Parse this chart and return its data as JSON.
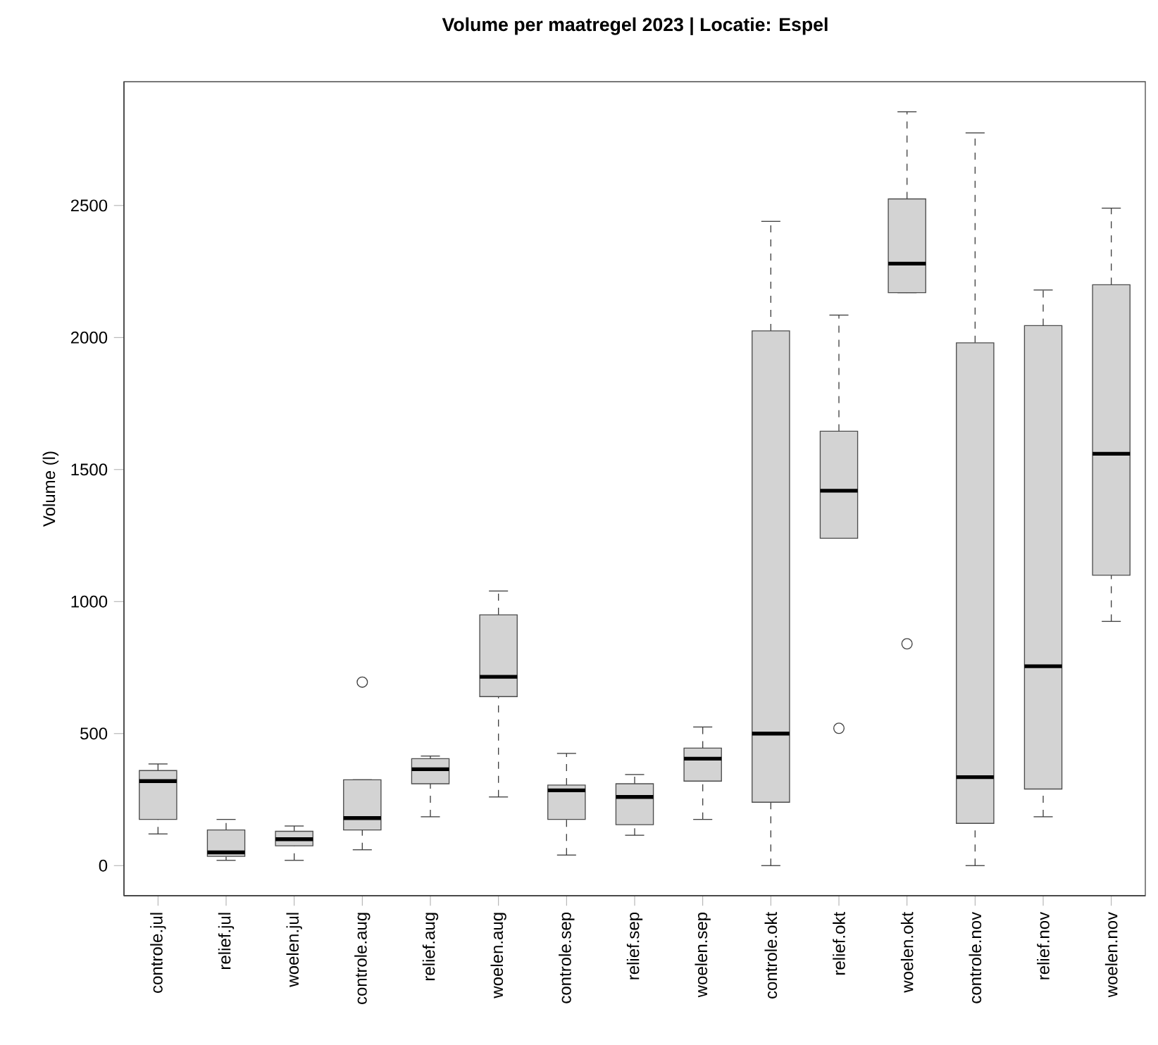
{
  "chart_data": {
    "type": "box",
    "title": "Volume per maatregel 2023 | Locatie: Espel",
    "ylabel": "Volume (l)",
    "categories": [
      "controle.jul",
      "relief.jul",
      "woelen.jul",
      "controle.aug",
      "relief.aug",
      "woelen.aug",
      "controle.sep",
      "relief.sep",
      "woelen.sep",
      "controle.okt",
      "relief.okt",
      "woelen.okt",
      "controle.nov",
      "relief.nov",
      "woelen.nov"
    ],
    "ylim": [
      -114,
      2969
    ],
    "yticks": [
      0,
      500,
      1000,
      1500,
      2000,
      2500
    ],
    "series": [
      {
        "color": "#d3d3d3",
        "boxes": [
          {
            "low": 120,
            "q1": 175,
            "median": 320,
            "q3": 360,
            "high": 385
          },
          {
            "low": 20,
            "q1": 35,
            "median": 50,
            "q3": 135,
            "high": 175
          },
          {
            "low": 20,
            "q1": 75,
            "median": 100,
            "q3": 130,
            "high": 150
          },
          {
            "low": 60,
            "q1": 135,
            "median": 180,
            "q3": 325,
            "high": 325,
            "outliers": [
              695
            ]
          },
          {
            "low": 185,
            "q1": 310,
            "median": 365,
            "q3": 405,
            "high": 415
          },
          {
            "low": 260,
            "q1": 640,
            "median": 715,
            "q3": 950,
            "high": 1040
          },
          {
            "low": 40,
            "q1": 175,
            "median": 285,
            "q3": 305,
            "high": 425
          },
          {
            "low": 115,
            "q1": 155,
            "median": 260,
            "q3": 310,
            "high": 345
          },
          {
            "low": 175,
            "q1": 320,
            "median": 405,
            "q3": 445,
            "high": 525
          },
          {
            "low": 0,
            "q1": 240,
            "median": 500,
            "q3": 2025,
            "high": 2440
          },
          {
            "low": 1240,
            "q1": 1240,
            "median": 1420,
            "q3": 1645,
            "high": 2085,
            "outliers": [
              520
            ]
          },
          {
            "low": 2170,
            "q1": 2170,
            "median": 2280,
            "q3": 2525,
            "high": 2855,
            "outliers": [
              840
            ]
          },
          {
            "low": 0,
            "q1": 160,
            "median": 335,
            "q3": 1980,
            "high": 2775
          },
          {
            "low": 185,
            "q1": 290,
            "median": 755,
            "q3": 2045,
            "high": 2180
          },
          {
            "low": 925,
            "q1": 1100,
            "median": 1560,
            "q3": 2200,
            "high": 2490
          }
        ]
      }
    ]
  }
}
